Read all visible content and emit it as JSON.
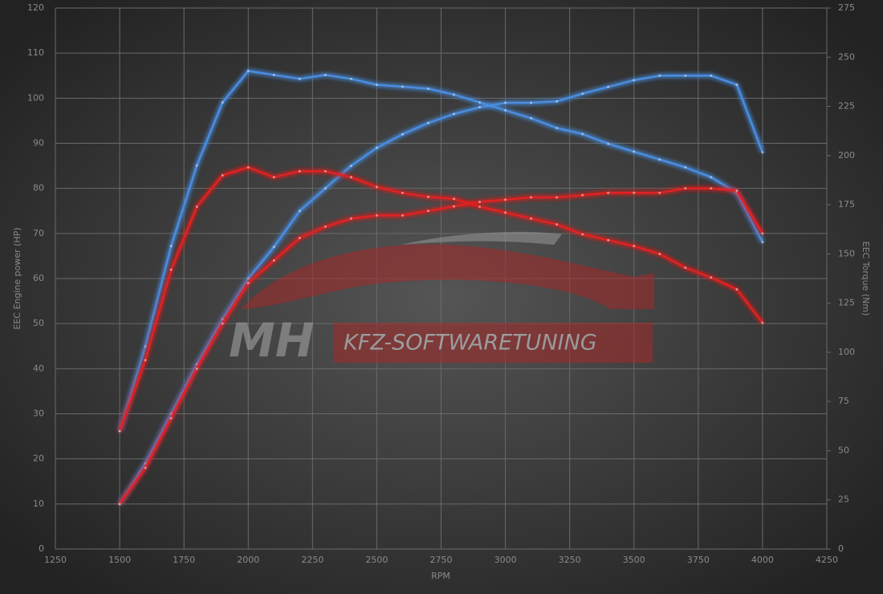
{
  "chart_data": {
    "type": "line",
    "x_label": "RPM",
    "y_label": "EEC Engine power (HP)",
    "y2_label": "EEC Torque (Nm)",
    "x": [
      1500,
      1600,
      1700,
      1800,
      1900,
      2000,
      2100,
      2200,
      2300,
      2400,
      2500,
      2600,
      2700,
      2800,
      2900,
      3000,
      3100,
      3200,
      3300,
      3400,
      3500,
      3600,
      3700,
      3800,
      3900,
      4000
    ],
    "series": [
      {
        "color": "#4a8de0",
        "axis": "y2",
        "values": [
          60,
          103,
          154,
          195,
          227,
          243,
          241,
          239,
          241,
          239,
          236,
          235,
          234,
          231,
          227,
          223,
          219,
          214,
          211,
          206,
          202,
          198,
          194,
          189,
          181,
          156
        ]
      },
      {
        "color": "#4a8de0",
        "values": [
          10,
          19,
          30,
          41,
          51,
          60,
          67,
          75,
          80,
          85,
          89,
          92,
          94.5,
          96.5,
          98,
          99,
          99,
          99.3,
          101,
          102.5,
          104,
          105,
          105,
          105,
          103,
          88
        ]
      },
      {
        "color": "#e02424",
        "axis": "y2",
        "values": [
          60,
          96,
          142,
          174,
          190,
          194,
          189,
          192,
          192,
          189,
          184,
          181,
          179,
          178,
          174,
          171,
          168,
          165,
          160,
          157,
          154,
          150,
          143,
          138,
          132,
          115
        ]
      },
      {
        "color": "#e02424",
        "values": [
          10,
          18,
          29,
          40,
          50,
          59,
          64,
          69,
          71.5,
          73.3,
          74,
          74,
          75,
          76,
          77,
          77.5,
          78,
          78,
          78.5,
          79,
          79,
          79,
          80,
          80,
          79.5,
          70
        ]
      }
    ],
    "xlim": [
      1250,
      4250
    ],
    "xticks": [
      1250,
      1500,
      1750,
      2000,
      2250,
      2500,
      2750,
      3000,
      3250,
      3500,
      3750,
      4000,
      4250
    ],
    "ylim": [
      0,
      120
    ],
    "yticks": [
      0,
      10,
      20,
      30,
      40,
      50,
      60,
      70,
      80,
      90,
      100,
      110,
      120
    ],
    "y2lim": [
      0,
      275
    ],
    "y2ticks": [
      0,
      25,
      50,
      75,
      100,
      125,
      150,
      175,
      200,
      225,
      250,
      275
    ],
    "grid": true
  },
  "watermark": {
    "logo": "MH",
    "text": "KFZ-SOFTWARETUNING"
  }
}
